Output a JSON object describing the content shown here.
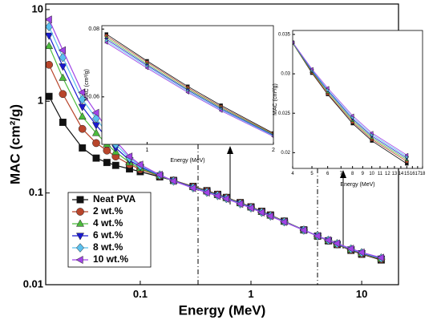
{
  "chart_data": [
    {
      "type": "line",
      "x_label": "Energy (MeV)",
      "y_label": "MAC (cm²/g)",
      "xscale": "log",
      "yscale": "log",
      "xlim": [
        0.014,
        21.5
      ],
      "ylim": [
        0.01,
        11.5
      ],
      "xticks": [
        0.1,
        1,
        10
      ],
      "yticks": [
        0.01,
        0.1,
        1,
        10
      ],
      "grid": false,
      "legend": "lower left",
      "x": [
        0.015,
        0.02,
        0.03,
        0.04,
        0.05,
        0.06,
        0.08,
        0.1,
        0.15,
        0.2,
        0.3,
        0.4,
        0.5,
        0.6,
        0.8,
        1,
        1.25,
        1.5,
        2,
        3,
        4,
        5,
        6,
        8,
        10,
        15
      ],
      "series": [
        {
          "name": "Neat PVA",
          "color": "#111111",
          "marker": "square",
          "values": [
            1.13,
            0.59,
            0.31,
            0.24,
            0.215,
            0.2,
            0.183,
            0.171,
            0.15,
            0.137,
            0.118,
            0.106,
            0.0966,
            0.0894,
            0.0785,
            0.0706,
            0.0631,
            0.0575,
            0.0493,
            0.0396,
            0.0339,
            0.0301,
            0.0274,
            0.0237,
            0.0215,
            0.0186
          ]
        },
        {
          "name": "2 wt.%",
          "color": "#b8452b",
          "marker": "circle",
          "values": [
            2.5,
            1.2,
            0.5,
            0.35,
            0.29,
            0.25,
            0.205,
            0.181,
            0.153,
            0.137,
            0.117,
            0.105,
            0.0959,
            0.0888,
            0.078,
            0.0702,
            0.0627,
            0.0571,
            0.0491,
            0.0395,
            0.0339,
            0.0302,
            0.0275,
            0.0239,
            0.0217,
            0.0189
          ]
        },
        {
          "name": "4 wt.%",
          "color": "#4cbb3c",
          "marker": "triangle-up",
          "values": [
            4.0,
            1.8,
            0.68,
            0.45,
            0.34,
            0.28,
            0.215,
            0.186,
            0.154,
            0.136,
            0.116,
            0.104,
            0.0952,
            0.0882,
            0.0775,
            0.0697,
            0.0623,
            0.0568,
            0.0489,
            0.0395,
            0.0339,
            0.0303,
            0.0277,
            0.0241,
            0.0219,
            0.0191
          ]
        },
        {
          "name": "6 wt.%",
          "color": "#1a1ad0",
          "marker": "triangle-down",
          "values": [
            5.2,
            2.4,
            0.87,
            0.55,
            0.4,
            0.31,
            0.228,
            0.192,
            0.156,
            0.136,
            0.115,
            0.103,
            0.0945,
            0.0876,
            0.077,
            0.0693,
            0.062,
            0.0565,
            0.0487,
            0.0394,
            0.034,
            0.0304,
            0.0279,
            0.0243,
            0.0221,
            0.0193
          ]
        },
        {
          "name": "8 wt.%",
          "color": "#5bc0ee",
          "marker": "diamond",
          "values": [
            6.5,
            3.0,
            1.05,
            0.65,
            0.45,
            0.34,
            0.24,
            0.198,
            0.157,
            0.135,
            0.114,
            0.102,
            0.0938,
            0.087,
            0.0765,
            0.0689,
            0.0616,
            0.0562,
            0.0485,
            0.0394,
            0.034,
            0.0305,
            0.028,
            0.0245,
            0.0223,
            0.0195
          ]
        },
        {
          "name": "10 wt.%",
          "color": "#a044e6",
          "marker": "triangle-left",
          "values": [
            7.8,
            3.6,
            1.25,
            0.75,
            0.5,
            0.37,
            0.25,
            0.204,
            0.158,
            0.135,
            0.113,
            0.101,
            0.0931,
            0.0864,
            0.076,
            0.0685,
            0.0613,
            0.0559,
            0.0483,
            0.0393,
            0.034,
            0.0306,
            0.0282,
            0.0247,
            0.0225,
            0.0197
          ]
        }
      ]
    },
    {
      "type": "line",
      "x_label": "Energy (MeV)",
      "y_label": "MAC (cm²/g)",
      "xscale": "log",
      "yscale": "linear",
      "xlim": [
        0.78,
        2
      ],
      "ylim": [
        0.046,
        0.081
      ],
      "xticks": [
        1,
        2
      ],
      "yticks": [
        0.06,
        0.08
      ]
    },
    {
      "type": "line",
      "x_label": "Energy (MeV)",
      "y_label": "MAC (cm²/g)",
      "xscale": "log",
      "yscale": "linear",
      "xlim": [
        4,
        18
      ],
      "ylim": [
        0.018,
        0.0355
      ],
      "xticks": [
        4,
        5,
        6,
        7,
        8,
        9,
        10,
        11,
        12,
        13,
        14,
        15,
        16,
        17,
        18
      ],
      "yticks": [
        0.02,
        0.025,
        0.03,
        0.035
      ]
    }
  ]
}
